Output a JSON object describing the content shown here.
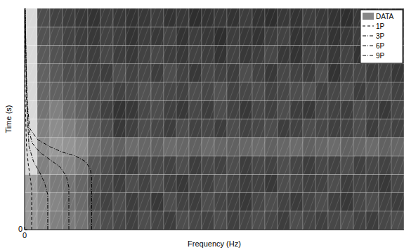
{
  "chart_data": {
    "type": "heatmap",
    "x_label": "Frequency (Hz)",
    "y_label": "Time (s)",
    "xlim": [
      0,
      30
    ],
    "ylim": [
      0,
      12
    ],
    "xticks": [
      0
    ],
    "yticks": [
      0
    ],
    "legend": "upper right",
    "data_name": "DATA",
    "data_color": "#888888",
    "cell_range": [
      0,
      1
    ],
    "cells": [
      [
        0.6,
        0.55,
        0.5,
        0.48,
        0.45,
        0.35,
        0.3,
        0.28,
        0.25,
        0.3,
        0.27,
        0.24,
        0.3,
        0.28,
        0.26,
        0.3,
        0.25,
        0.27,
        0.3,
        0.28,
        0.24,
        0.3,
        0.27,
        0.25,
        0.28,
        0.3,
        0.26,
        0.24,
        0.28,
        0.3
      ],
      [
        0.6,
        0.55,
        0.52,
        0.45,
        0.42,
        0.3,
        0.26,
        0.3,
        0.24,
        0.28,
        0.22,
        0.3,
        0.26,
        0.24,
        0.3,
        0.27,
        0.25,
        0.22,
        0.28,
        0.3,
        0.26,
        0.23,
        0.27,
        0.3,
        0.25,
        0.22,
        0.28,
        0.3,
        0.26,
        0.24
      ],
      [
        0.62,
        0.5,
        0.48,
        0.45,
        0.4,
        0.32,
        0.28,
        0.24,
        0.3,
        0.26,
        0.3,
        0.25,
        0.22,
        0.28,
        0.25,
        0.3,
        0.27,
        0.24,
        0.26,
        0.22,
        0.3,
        0.28,
        0.25,
        0.26,
        0.3,
        0.24,
        0.27,
        0.25,
        0.22,
        0.28
      ],
      [
        0.85,
        0.5,
        0.55,
        0.52,
        0.48,
        0.35,
        0.3,
        0.26,
        0.24,
        0.3,
        0.28,
        0.26,
        0.3,
        0.24,
        0.28,
        0.26,
        0.3,
        0.24,
        0.28,
        0.26,
        0.3,
        0.27,
        0.24,
        0.28,
        0.26,
        0.3,
        0.25,
        0.28,
        0.26,
        0.3
      ],
      [
        0.85,
        0.55,
        0.6,
        0.58,
        0.55,
        0.45,
        0.4,
        0.38,
        0.42,
        0.4,
        0.38,
        0.42,
        0.4,
        0.38,
        0.42,
        0.4,
        0.38,
        0.4,
        0.42,
        0.38,
        0.4,
        0.42,
        0.38,
        0.4,
        0.42,
        0.38,
        0.4,
        0.42,
        0.38,
        0.4
      ],
      [
        0.85,
        0.5,
        0.55,
        0.5,
        0.45,
        0.35,
        0.3,
        0.22,
        0.25,
        0.3,
        0.28,
        0.24,
        0.3,
        0.26,
        0.28,
        0.24,
        0.3,
        0.26,
        0.28,
        0.3,
        0.24,
        0.26,
        0.3,
        0.28,
        0.25,
        0.26,
        0.3,
        0.24,
        0.28,
        0.26
      ],
      [
        0.85,
        0.45,
        0.5,
        0.42,
        0.38,
        0.3,
        0.25,
        0.2,
        0.22,
        0.28,
        0.3,
        0.25,
        0.22,
        0.28,
        0.24,
        0.3,
        0.26,
        0.22,
        0.28,
        0.25,
        0.3,
        0.24,
        0.22,
        0.28,
        0.26,
        0.24,
        0.3,
        0.26,
        0.22,
        0.28
      ],
      [
        0.85,
        0.4,
        0.38,
        0.35,
        0.32,
        0.28,
        0.3,
        0.26,
        0.28,
        0.32,
        0.3,
        0.28,
        0.26,
        0.3,
        0.28,
        0.32,
        0.26,
        0.28,
        0.3,
        0.26,
        0.28,
        0.3,
        0.32,
        0.26,
        0.28,
        0.3,
        0.24,
        0.28,
        0.3,
        0.26
      ],
      [
        0.85,
        0.38,
        0.35,
        0.3,
        0.3,
        0.26,
        0.24,
        0.3,
        0.26,
        0.28,
        0.24,
        0.3,
        0.26,
        0.22,
        0.28,
        0.26,
        0.24,
        0.3,
        0.26,
        0.22,
        0.28,
        0.26,
        0.24,
        0.3,
        0.2,
        0.26,
        0.28,
        0.24,
        0.26,
        0.22
      ],
      [
        0.85,
        0.35,
        0.32,
        0.28,
        0.26,
        0.24,
        0.28,
        0.24,
        0.22,
        0.26,
        0.28,
        0.24,
        0.22,
        0.26,
        0.24,
        0.2,
        0.26,
        0.22,
        0.24,
        0.28,
        0.22,
        0.2,
        0.26,
        0.24,
        0.22,
        0.26,
        0.2,
        0.24,
        0.22,
        0.26
      ],
      [
        0.85,
        0.32,
        0.3,
        0.26,
        0.24,
        0.22,
        0.26,
        0.24,
        0.2,
        0.24,
        0.22,
        0.26,
        0.2,
        0.24,
        0.22,
        0.18,
        0.24,
        0.22,
        0.2,
        0.24,
        0.26,
        0.2,
        0.22,
        0.24,
        0.2,
        0.22,
        0.24,
        0.2,
        0.22,
        0.24
      ],
      [
        0.85,
        0.3,
        0.26,
        0.24,
        0.22,
        0.2,
        0.24,
        0.22,
        0.2,
        0.22,
        0.24,
        0.2,
        0.22,
        0.18,
        0.2,
        0.22,
        0.2,
        0.24,
        0.2,
        0.18,
        0.22,
        0.2,
        0.24,
        0.22,
        0.2,
        0.18,
        0.22,
        0.2,
        0.24,
        0.2
      ]
    ],
    "series": [
      {
        "name": "1P",
        "type": "line",
        "color": "#000000",
        "line_style": "dashed",
        "x": [
          0.56,
          0.56,
          0.45,
          0.3,
          0.15,
          0.05,
          0.02
        ],
        "values": [
          0,
          2.2,
          2.8,
          3.5,
          4.5,
          7,
          12
        ]
      },
      {
        "name": "3P",
        "type": "line",
        "color": "#000000",
        "line_style": "dashdot",
        "x": [
          1.83,
          1.83,
          1.6,
          1.2,
          0.7,
          0.35,
          0.15,
          0.05
        ],
        "values": [
          0,
          1.9,
          2.5,
          3.1,
          3.7,
          4.5,
          7,
          12
        ]
      },
      {
        "name": "6P",
        "type": "line",
        "color": "#000000",
        "line_style": "dashdot",
        "x": [
          3.5,
          3.5,
          3.3,
          2.8,
          2,
          1.2,
          0.6,
          0.3,
          0.15,
          0.05
        ],
        "values": [
          0,
          2.3,
          2.9,
          3.4,
          3.8,
          4.2,
          4.7,
          5.5,
          8,
          12
        ]
      },
      {
        "name": "9P",
        "type": "line",
        "color": "#000000",
        "line_style": "dashdot",
        "x": [
          5.3,
          5.3,
          5.2,
          4.8,
          4,
          3,
          2,
          1,
          0.4,
          0.2,
          0.1,
          0.05
        ],
        "values": [
          0,
          2.8,
          3.3,
          3.7,
          4.0,
          4.2,
          4.5,
          4.9,
          5.5,
          7,
          9.5,
          12
        ]
      }
    ]
  }
}
